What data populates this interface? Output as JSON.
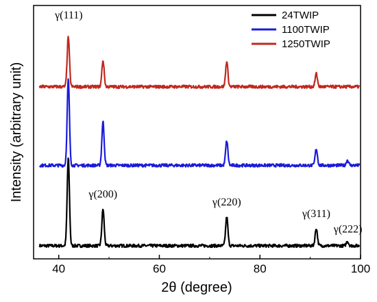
{
  "chart_data": {
    "type": "line",
    "title": "",
    "xlabel": "2θ (degree)",
    "ylabel": "Intensity (arbitrary unit)",
    "xlim": [
      35,
      100
    ],
    "xticks": [
      40,
      60,
      80,
      100
    ],
    "x_tick_labels": [
      "40",
      "60",
      "80",
      "100"
    ],
    "yticks_shown": false,
    "grid": false,
    "legend_position": "top-right",
    "series": [
      {
        "name": "24TWIP",
        "color": "#000000",
        "baseline": 0.0,
        "peaks": [
          [
            41.9,
            1.0
          ],
          [
            48.8,
            0.42
          ],
          [
            73.4,
            0.33
          ],
          [
            91.2,
            0.2
          ],
          [
            97.4,
            0.05
          ]
        ]
      },
      {
        "name": "1100TWIP",
        "color": "#1a1adc",
        "baseline": 0.92,
        "peaks": [
          [
            41.9,
            0.98
          ],
          [
            48.8,
            0.5
          ],
          [
            73.4,
            0.28
          ],
          [
            91.2,
            0.19
          ],
          [
            97.4,
            0.06
          ]
        ]
      },
      {
        "name": "1250TWIP",
        "color": "#c0281e",
        "baseline": 1.82,
        "peaks": [
          [
            41.9,
            0.57
          ],
          [
            48.8,
            0.3
          ],
          [
            73.4,
            0.29
          ],
          [
            91.2,
            0.15
          ]
        ]
      }
    ],
    "annotations": [
      {
        "text": "γ(111)",
        "x": 42.0,
        "y": 2.6
      },
      {
        "text": "γ(200)",
        "x": 48.8,
        "y": 0.55
      },
      {
        "text": "γ(220)",
        "x": 73.4,
        "y": 0.46
      },
      {
        "text": "γ(311)",
        "x": 91.2,
        "y": 0.33
      },
      {
        "text": "γ(222)",
        "x": 97.5,
        "y": 0.15
      }
    ],
    "ylim_internal": [
      -0.15,
      2.75
    ]
  }
}
